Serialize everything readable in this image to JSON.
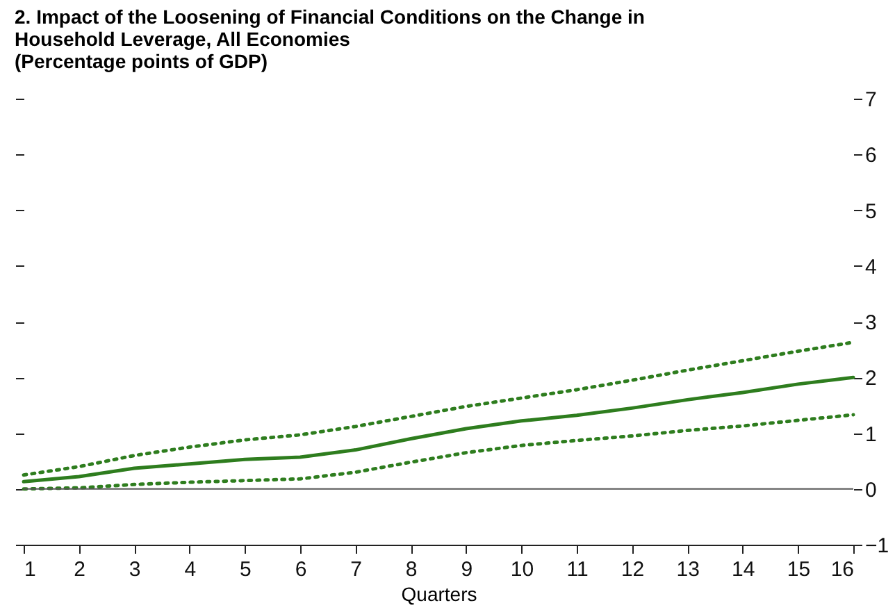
{
  "chart_data": {
    "type": "line",
    "title": "2. Impact of the Loosening of Financial Conditions on the Change in\nHousehold Leverage, All Economies",
    "subtitle": "(Percentage points of GDP)",
    "xlabel": "Quarters",
    "x": [
      1,
      2,
      3,
      4,
      5,
      6,
      7,
      8,
      9,
      10,
      11,
      12,
      13,
      14,
      15,
      16
    ],
    "series": [
      {
        "color": "#2e7d1e",
        "line_style": "dotted",
        "values": [
          0.25,
          0.4,
          0.6,
          0.75,
          0.88,
          0.97,
          1.12,
          1.3,
          1.48,
          1.63,
          1.78,
          1.95,
          2.13,
          2.3,
          2.47,
          2.63
        ]
      },
      {
        "color": "#2e7d1e",
        "line_style": "solid",
        "values": [
          0.13,
          0.22,
          0.37,
          0.45,
          0.53,
          0.57,
          0.7,
          0.9,
          1.08,
          1.22,
          1.32,
          1.45,
          1.6,
          1.73,
          1.88,
          2.0
        ]
      },
      {
        "color": "#2e7d1e",
        "line_style": "dotted",
        "values": [
          0.0,
          0.02,
          0.08,
          0.12,
          0.15,
          0.18,
          0.3,
          0.48,
          0.65,
          0.78,
          0.87,
          0.95,
          1.05,
          1.13,
          1.23,
          1.33
        ]
      }
    ],
    "xlim": [
      1,
      16
    ],
    "xticks": [
      1,
      2,
      3,
      4,
      5,
      6,
      7,
      8,
      9,
      10,
      11,
      12,
      13,
      14,
      15,
      16
    ],
    "ylim": [
      -1,
      7
    ],
    "yticks": [
      -1,
      0,
      1,
      2,
      3,
      4,
      5,
      6,
      7
    ],
    "ref_lines": [
      {
        "axis": "y",
        "value": 0,
        "color": "#555555"
      }
    ],
    "grid": false,
    "legend": false,
    "marker": "none"
  }
}
